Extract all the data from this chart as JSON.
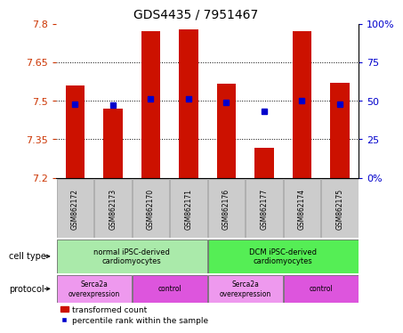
{
  "title": "GDS4435 / 7951467",
  "samples": [
    "GSM862172",
    "GSM862173",
    "GSM862170",
    "GSM862171",
    "GSM862176",
    "GSM862177",
    "GSM862174",
    "GSM862175"
  ],
  "bar_values": [
    7.56,
    7.47,
    7.77,
    7.78,
    7.565,
    7.315,
    7.77,
    7.57
  ],
  "bar_bottom": 7.2,
  "blue_dot_percentiles": [
    48,
    47,
    51,
    51,
    49,
    43,
    50,
    48
  ],
  "ylim": [
    7.2,
    7.8
  ],
  "yticks_left": [
    7.2,
    7.35,
    7.5,
    7.65,
    7.8
  ],
  "yticks_right": [
    0,
    25,
    50,
    75,
    100
  ],
  "ytick_right_labels": [
    "0%",
    "25",
    "50",
    "75",
    "100%"
  ],
  "gridlines": [
    7.35,
    7.5,
    7.65
  ],
  "bar_color": "#cc1100",
  "dot_color": "#0000cc",
  "left_tick_color": "#cc3300",
  "right_tick_color": "#0000cc",
  "cell_type_groups": [
    {
      "label": "normal iPSC-derived\ncardiomyocytes",
      "start": 0,
      "end": 4,
      "color": "#aaeaaa"
    },
    {
      "label": "DCM iPSC-derived\ncardiomyocytes",
      "start": 4,
      "end": 8,
      "color": "#55ee55"
    }
  ],
  "protocol_groups": [
    {
      "label": "Serca2a\noverexpression",
      "start": 0,
      "end": 2,
      "color": "#ee99ee"
    },
    {
      "label": "control",
      "start": 2,
      "end": 4,
      "color": "#dd55dd"
    },
    {
      "label": "Serca2a\noverexpression",
      "start": 4,
      "end": 6,
      "color": "#ee99ee"
    },
    {
      "label": "control",
      "start": 6,
      "end": 8,
      "color": "#dd55dd"
    }
  ],
  "legend_bar_label": "transformed count",
  "legend_dot_label": "percentile rank within the sample",
  "cell_type_label": "cell type",
  "protocol_label": "protocol"
}
